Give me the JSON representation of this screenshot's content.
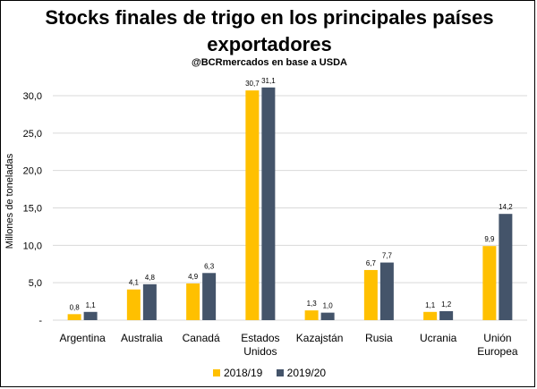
{
  "chart_data": {
    "type": "bar",
    "title": "Stocks finales de trigo en los principales países exportadores",
    "title_lines": [
      "Stocks finales de trigo en los principales países",
      "exportadores"
    ],
    "subtitle": "@BCRmercados en base a USDA",
    "ylabel": "Millones de toneladas",
    "xlabel": "",
    "ylim": [
      0,
      30
    ],
    "yticks": [
      0,
      5,
      10,
      15,
      20,
      25,
      30
    ],
    "ytick_labels": [
      "-",
      "5,0",
      "10,0",
      "15,0",
      "20,0",
      "25,0",
      "30,0"
    ],
    "grid": true,
    "legend_position": "bottom",
    "categories": [
      "Argentina",
      "Australia",
      "Canadá",
      "Estados Unidos",
      "Kazajstán",
      "Rusia",
      "Ucrania",
      "Unión Europea"
    ],
    "category_lines": [
      [
        "Argentina"
      ],
      [
        "Australia"
      ],
      [
        "Canadá"
      ],
      [
        "Estados",
        "Unidos"
      ],
      [
        "Kazajstán"
      ],
      [
        "Rusia"
      ],
      [
        "Ucrania"
      ],
      [
        "Unión",
        "Europea"
      ]
    ],
    "series": [
      {
        "name": "2018/19",
        "color": "#FFC000",
        "values": [
          0.8,
          4.1,
          4.9,
          30.7,
          1.3,
          6.7,
          1.1,
          9.9
        ],
        "labels": [
          "0,8",
          "4,1",
          "4,9",
          "30,7",
          "1,3",
          "6,7",
          "1,1",
          "9,9"
        ]
      },
      {
        "name": "2019/20",
        "color": "#44546A",
        "values": [
          1.1,
          4.8,
          6.3,
          31.1,
          1.0,
          7.7,
          1.2,
          14.2
        ],
        "labels": [
          "1,1",
          "4,8",
          "6,3",
          "31,1",
          "1,0",
          "7,7",
          "1,2",
          "14,2"
        ]
      }
    ]
  }
}
